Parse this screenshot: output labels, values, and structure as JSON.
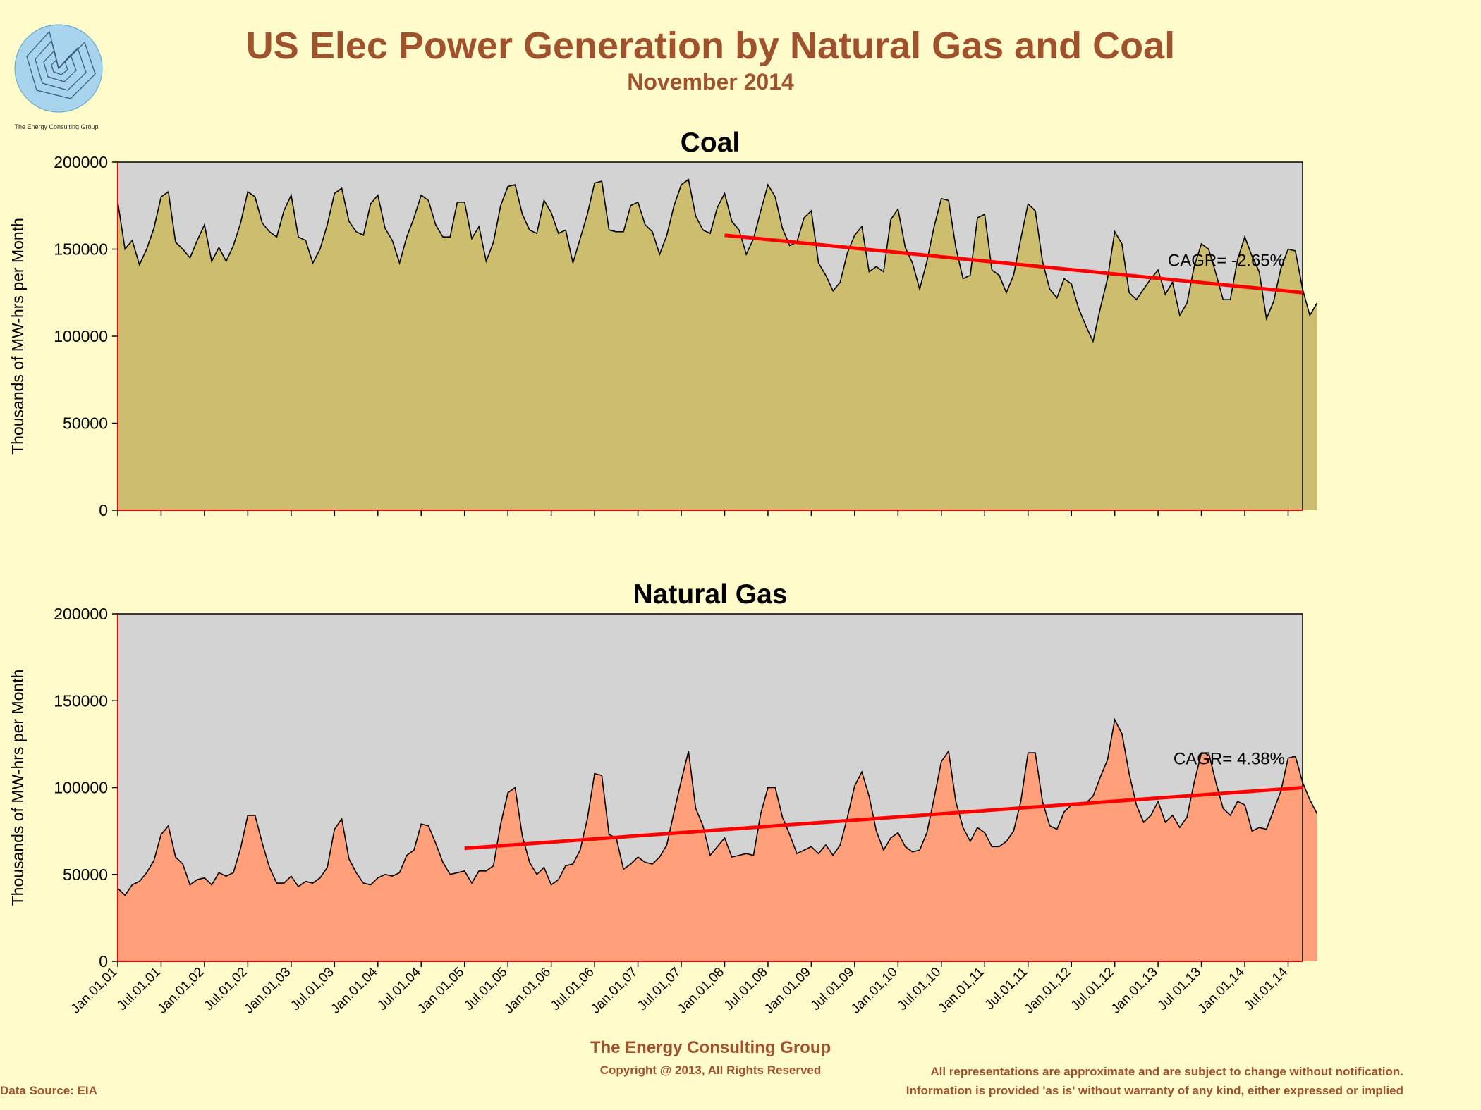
{
  "header": {
    "title": "US Elec Power Generation by Natural Gas and Coal",
    "subtitle": "November 2014",
    "logo_text": "The Energy Consulting Group"
  },
  "footer": {
    "org": "The Energy Consulting Group",
    "copyright": "Copyright @ 2013, All Rights Reserved",
    "source": "Data Source: EIA",
    "disclaimer_1": "All representations are approximate and are subject to change without notification.",
    "disclaimer_2": "Information is provided 'as is' without warranty of any kind, either expressed or implied"
  },
  "colors": {
    "background": "#fffbcb",
    "plot_background": "#d3d3d3",
    "coal_fill": "#cdbd6e",
    "gas_fill": "#ffa07a",
    "trend": "#ff0000",
    "title": "#a0522d"
  },
  "chart_data": [
    {
      "type": "area",
      "title": "Coal",
      "ylabel": "Thousands of MW-hrs per Month",
      "ylim": [
        0,
        200000
      ],
      "yticks": [
        0,
        50000,
        100000,
        150000,
        200000
      ],
      "x_start": "2001-01",
      "x_end": "2014-09",
      "grid": false,
      "series": [
        {
          "values": [
            177000,
            150000,
            155000,
            141000,
            150000,
            162000,
            180000,
            183000,
            154000,
            150000,
            145000,
            155000,
            164000,
            143000,
            151000,
            143000,
            152000,
            165000,
            183000,
            180000,
            165000,
            160000,
            157000,
            172000,
            181000,
            157000,
            155000,
            142000,
            150000,
            164000,
            182000,
            185000,
            166000,
            160000,
            158000,
            176000,
            181000,
            162000,
            155000,
            142000,
            157000,
            168000,
            181000,
            178000,
            164000,
            157000,
            157000,
            177000,
            177000,
            156000,
            163000,
            143000,
            154000,
            175000,
            186000,
            187000,
            170000,
            161000,
            159000,
            178000,
            171000,
            159000,
            161000,
            142000,
            156000,
            170000,
            188000,
            189000,
            161000,
            160000,
            160000,
            175000,
            177000,
            164000,
            160000,
            147000,
            158000,
            175000,
            187000,
            190000,
            169000,
            161000,
            159000,
            174000,
            182000,
            166000,
            161000,
            147000,
            156000,
            172000,
            187000,
            180000,
            162000,
            152000,
            154000,
            168000,
            172000,
            142000,
            135000,
            126000,
            131000,
            148000,
            158000,
            163000,
            137000,
            140000,
            137000,
            167000,
            173000,
            151000,
            142000,
            127000,
            143000,
            163000,
            179000,
            178000,
            151000,
            133000,
            135000,
            168000,
            170000,
            138000,
            135000,
            125000,
            135000,
            156000,
            176000,
            172000,
            143000,
            127000,
            122000,
            133000,
            130000,
            116000,
            106000,
            97000,
            116000,
            133000,
            160000,
            153000,
            125000,
            121000,
            127000,
            133000,
            138000,
            124000,
            131000,
            112000,
            119000,
            140000,
            153000,
            150000,
            136000,
            121000,
            121000,
            144000,
            157000,
            146000,
            137000,
            110000,
            120000,
            139000,
            150000,
            149000,
            127000,
            112000,
            119000
          ]
        }
      ],
      "trend": {
        "start": "2008-01",
        "end": "2014-09",
        "start_value": 158000,
        "end_value": 125000
      },
      "annotation": "CAGR= -2.65%"
    },
    {
      "type": "area",
      "title": "Natural Gas",
      "ylabel": "Thousands of MW-hrs per Month",
      "ylim": [
        0,
        200000
      ],
      "yticks": [
        0,
        50000,
        100000,
        150000,
        200000
      ],
      "x_start": "2001-01",
      "x_end": "2014-09",
      "grid": false,
      "x_tick_labels": [
        "Jan.01,01",
        "Jul.01,01",
        "Jan.01,02",
        "Jul.01,02",
        "Jan.01,03",
        "Jul.01,03",
        "Jan.01,04",
        "Jul.01,04",
        "Jan.01,05",
        "Jul.01,05",
        "Jan.01,06",
        "Jul.01,06",
        "Jan.01,07",
        "Jul.01,07",
        "Jan.01,08",
        "Jul.01,08",
        "Jan.01,09",
        "Jul.01,09",
        "Jan.01,10",
        "Jul.01,10",
        "Jan.01,11",
        "Jul.01,11",
        "Jan.01,12",
        "Jul.01,12",
        "Jan.01,13",
        "Jul.01,13",
        "Jan.01,14",
        "Jul.01,14"
      ],
      "series": [
        {
          "values": [
            42000,
            38000,
            44000,
            46000,
            51000,
            58000,
            73000,
            78000,
            60000,
            56000,
            44000,
            47000,
            48000,
            44000,
            51000,
            49000,
            51000,
            65000,
            84000,
            84000,
            68000,
            54000,
            45000,
            45000,
            49000,
            43000,
            46000,
            45000,
            48000,
            54000,
            76000,
            82000,
            59000,
            51000,
            45000,
            44000,
            48000,
            50000,
            49000,
            51000,
            61000,
            64000,
            79000,
            78000,
            68000,
            57000,
            50000,
            51000,
            52000,
            45000,
            52000,
            52000,
            55000,
            79000,
            97000,
            100000,
            72000,
            57000,
            50000,
            54000,
            44000,
            47000,
            55000,
            56000,
            64000,
            82000,
            108000,
            107000,
            73000,
            71000,
            53000,
            56000,
            60000,
            57000,
            56000,
            60000,
            67000,
            86000,
            104000,
            121000,
            88000,
            78000,
            61000,
            66000,
            71000,
            60000,
            61000,
            62000,
            61000,
            85000,
            100000,
            100000,
            83000,
            73000,
            62000,
            64000,
            66000,
            62000,
            67000,
            61000,
            67000,
            83000,
            101000,
            109000,
            95000,
            75000,
            64000,
            71000,
            74000,
            66000,
            63000,
            64000,
            74000,
            94000,
            115000,
            121000,
            92000,
            77000,
            69000,
            77000,
            74000,
            66000,
            66000,
            69000,
            75000,
            92000,
            120000,
            120000,
            92000,
            78000,
            76000,
            86000,
            90000,
            90000,
            91000,
            95000,
            106000,
            116000,
            139000,
            131000,
            108000,
            90000,
            80000,
            84000,
            92000,
            80000,
            84000,
            77000,
            83000,
            103000,
            120000,
            120000,
            103000,
            88000,
            84000,
            92000,
            90000,
            75000,
            77000,
            76000,
            87000,
            98000,
            117000,
            118000,
            103000,
            93000,
            85000
          ]
        }
      ],
      "trend": {
        "start": "2005-01",
        "end": "2014-09",
        "start_value": 65000,
        "end_value": 100000
      },
      "annotation": "CAGR= 4.38%"
    }
  ]
}
